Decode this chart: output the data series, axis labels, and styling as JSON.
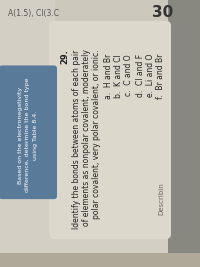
{
  "bg_color": "#b0a898",
  "left_panel_color": "#d4cfc5",
  "card_color": "#ddd8cc",
  "blue_box_color": "#5a7a9a",
  "blue_box_text_color": "#ffffff",
  "blue_box_lines": [
    "Based on the electronegativity",
    "difference, determine the bond type",
    "using Table 8.4."
  ],
  "top_label": "A(1.5), CI(3.C",
  "section_number": "30",
  "question_number": "29.",
  "question_line1": "Identify the bonds between atoms of each pair",
  "question_line2": "of elements as nonpolar covalent, moderately",
  "question_line3": "polar covalent, very polar covalent, or ionic.",
  "items_left": [
    "a.  H and Br",
    "b.  K and Cl",
    "c.  C and O"
  ],
  "items_right": [
    "d.  Cl and F",
    "e.  Li and O",
    "f.  Br and Br"
  ],
  "bottom_text": "Describin",
  "right_strip_color": "#888880"
}
